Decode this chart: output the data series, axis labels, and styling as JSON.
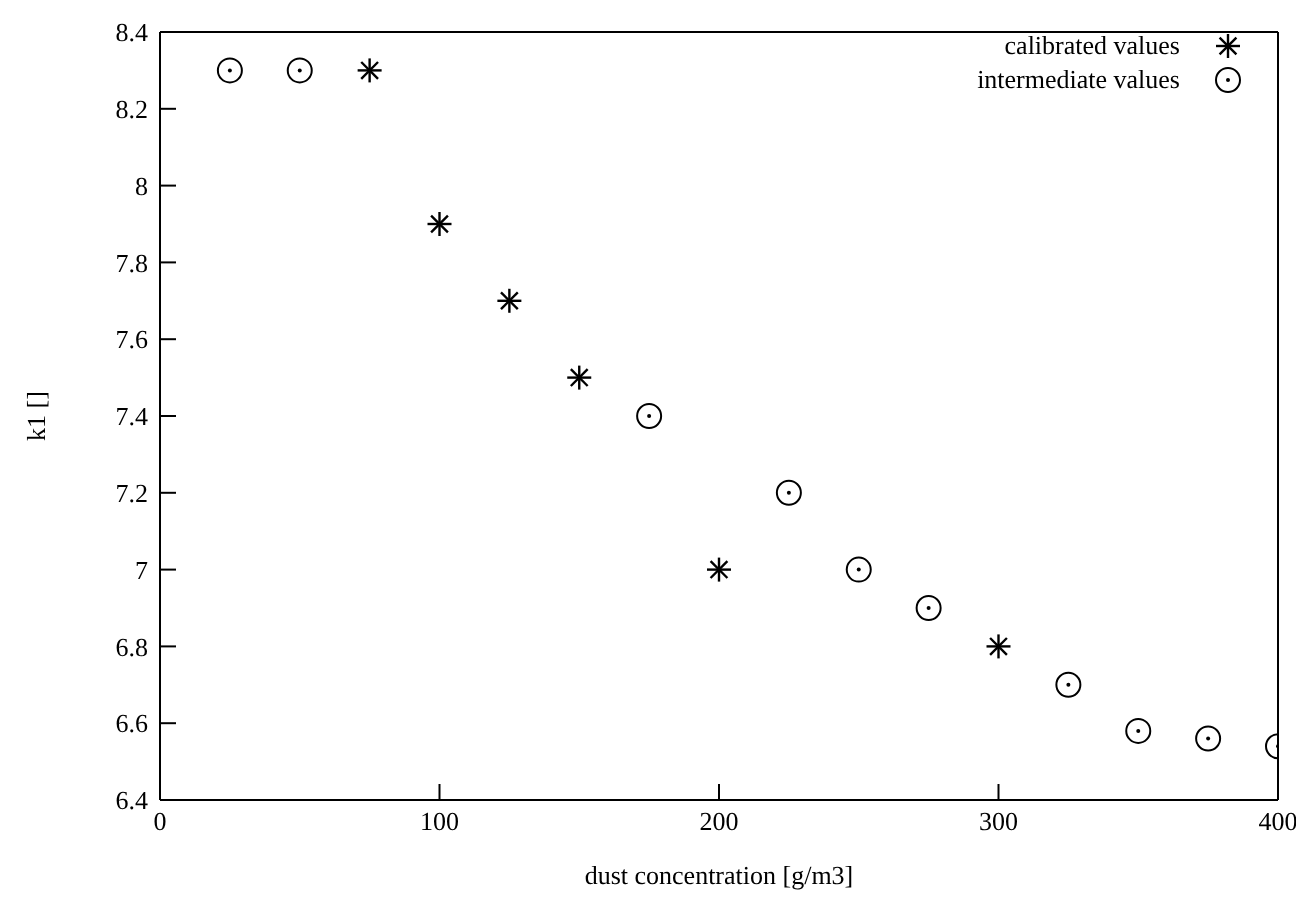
{
  "chart_data": {
    "type": "scatter",
    "xlabel": "dust concentration [g/m3]",
    "ylabel": "k1 []",
    "xlim": [
      0,
      400
    ],
    "xticks": [
      0,
      100,
      200,
      300,
      400
    ],
    "ylim": [
      6.4,
      8.4
    ],
    "yticks": [
      6.4,
      6.6,
      6.8,
      7,
      7.2,
      7.4,
      7.6,
      7.8,
      8,
      8.2,
      8.4
    ],
    "grid": false,
    "legend": "top right",
    "series": [
      {
        "name": "calibrated values",
        "color": "#000000",
        "marker": "cross",
        "x": [
          75,
          100,
          125,
          150,
          200,
          300
        ],
        "values": [
          8.3,
          7.9,
          7.7,
          7.5,
          7.0,
          6.8
        ]
      },
      {
        "name": "intermediate values",
        "color": "#000000",
        "marker": "circle",
        "x": [
          25,
          50,
          175,
          225,
          250,
          275,
          325,
          350,
          375,
          400
        ],
        "values": [
          8.3,
          8.3,
          7.4,
          7.2,
          7.0,
          6.9,
          6.7,
          6.58,
          6.56,
          6.54
        ]
      }
    ]
  }
}
